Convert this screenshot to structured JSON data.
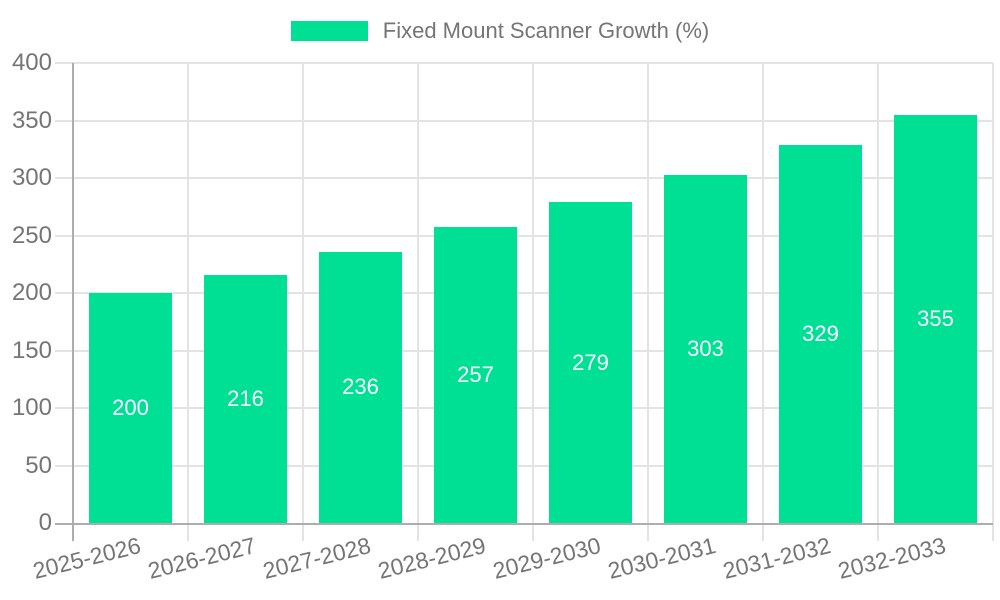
{
  "legend": {
    "series_label": "Fixed Mount Scanner Growth (%)"
  },
  "colors": {
    "bar": "#00E094",
    "label_text": "#757575",
    "value_text": "#FFFFFF",
    "gridline": "#E3E3E3",
    "axis_line": "#ADADAD",
    "background": "#FFFFFF"
  },
  "chart_data": {
    "type": "bar",
    "title": "Fixed Mount Scanner Growth (%)",
    "categories": [
      "2025-2026",
      "2026-2027",
      "2027-2028",
      "2028-2029",
      "2029-2030",
      "2030-2031",
      "2031-2032",
      "2032-2033"
    ],
    "series": [
      {
        "name": "Fixed Mount Scanner Growth (%)",
        "values": [
          200,
          216,
          236,
          257,
          279,
          303,
          329,
          355
        ]
      }
    ],
    "xlabel": "",
    "ylabel": "",
    "ylim": [
      0,
      400
    ],
    "yticks": [
      0,
      50,
      100,
      150,
      200,
      250,
      300,
      350,
      400
    ],
    "grid": true,
    "legend_position": "top",
    "value_labels": "inside-center",
    "x_tick_rotation_deg": -14
  }
}
